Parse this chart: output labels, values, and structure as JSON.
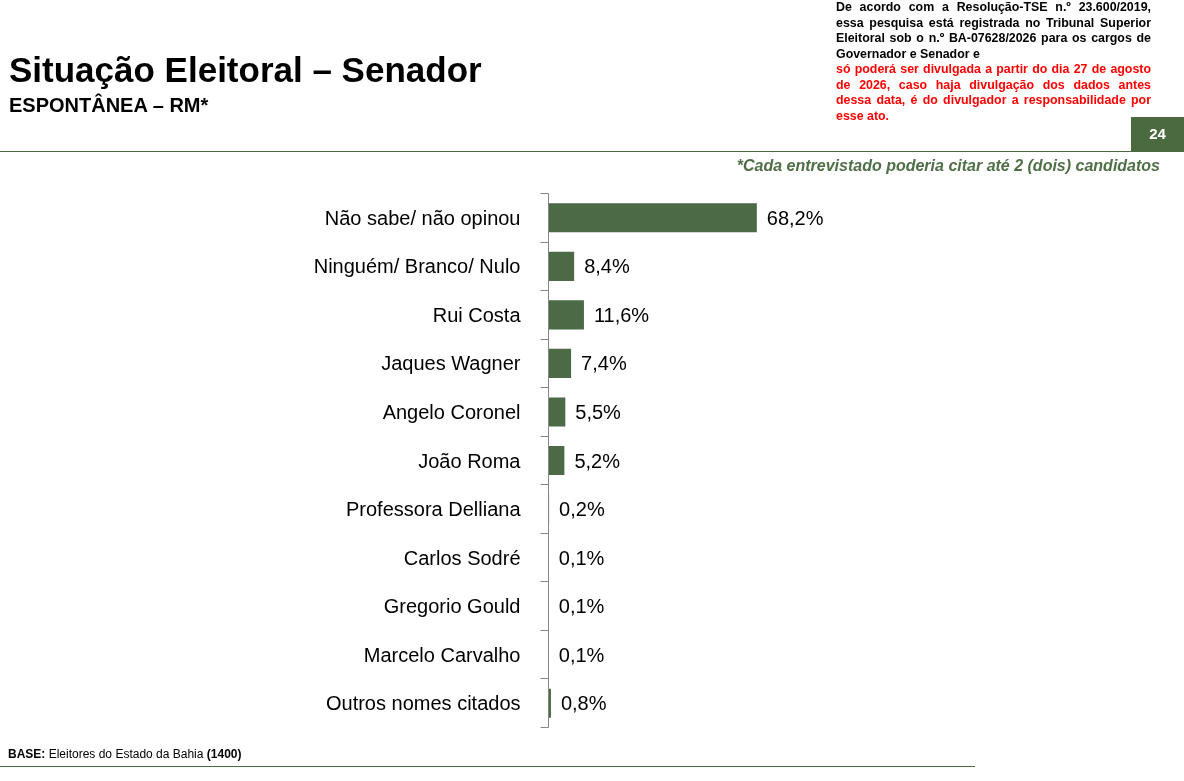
{
  "chart_data": {
    "type": "bar",
    "orientation": "horizontal",
    "title": "Situação Eleitoral – Senador",
    "subtitle": "ESPONTÂNEA – RM*",
    "categories": [
      "Não sabe/ não opinou",
      "Ninguém/ Branco/ Nulo",
      "Rui Costa",
      "Jaques Wagner",
      "Angelo Coronel",
      "João Roma",
      "Professora Delliana",
      "Carlos Sodré",
      "Gregorio Gould",
      "Marcelo Carvalho",
      "Outros nomes citados"
    ],
    "values": [
      68.2,
      8.4,
      11.6,
      7.4,
      5.5,
      5.2,
      0.2,
      0.1,
      0.1,
      0.1,
      0.8
    ],
    "value_labels": [
      "68,2%",
      "8,4%",
      "11,6%",
      "7,4%",
      "5,5%",
      "5,2%",
      "0,2%",
      "0,1%",
      "0,1%",
      "0,1%",
      "0,8%"
    ],
    "color": "#4b6a45",
    "tick_labels": "y",
    "annotations": [
      "De acordo com a Resolução-TSE n.º 23.600/2019, essa pesquisa está registrada no Tribunal Superior Eleitoral sob o n.º BA-07628/2026 para os cargos de Governador e Senador e",
      "só poderá ser divulgada a partir do dia 27 de agosto de 2026, caso haja divulgação dos dados antes dessa data, é do divulgador a responsabilidade por esse ato.",
      "24",
      "*Cada entrevistado poderia citar até 2 (dois) candidatos",
      "BASE: Eleitores do Estado da Bahia (1400)"
    ]
  }
}
